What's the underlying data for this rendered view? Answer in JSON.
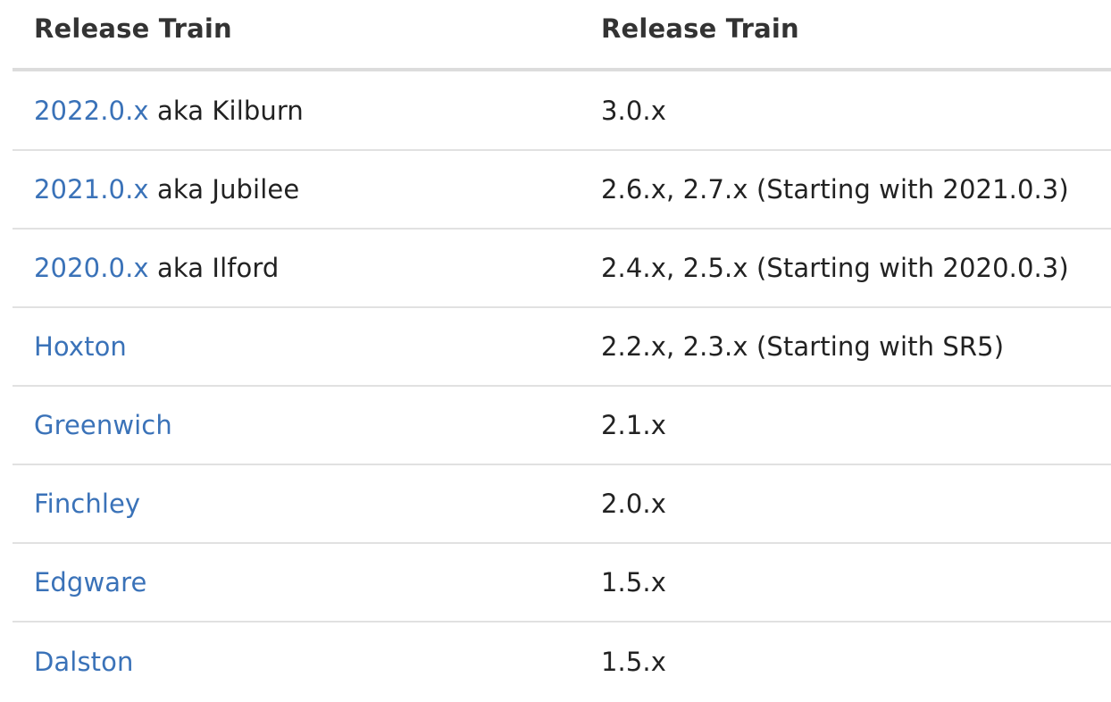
{
  "table": {
    "headers": [
      "Release Train",
      "Release Train"
    ],
    "rows": [
      {
        "link": "2022.0.x",
        "suffix": " aka Kilburn",
        "value": "3.0.x"
      },
      {
        "link": "2021.0.x",
        "suffix": " aka Jubilee",
        "value": "2.6.x, 2.7.x (Starting with 2021.0.3)"
      },
      {
        "link": "2020.0.x",
        "suffix": " aka Ilford",
        "value": "2.4.x, 2.5.x (Starting with 2020.0.3)"
      },
      {
        "link": "Hoxton",
        "suffix": "",
        "value": "2.2.x, 2.3.x (Starting with SR5)"
      },
      {
        "link": "Greenwich",
        "suffix": "",
        "value": "2.1.x"
      },
      {
        "link": "Finchley",
        "suffix": "",
        "value": "2.0.x"
      },
      {
        "link": "Edgware",
        "suffix": "",
        "value": "1.5.x"
      },
      {
        "link": "Dalston",
        "suffix": "",
        "value": "1.5.x"
      }
    ]
  },
  "colors": {
    "link": "#3a72b8",
    "text": "#222222",
    "header_text": "#333333",
    "divider": "#e1e1e1"
  }
}
